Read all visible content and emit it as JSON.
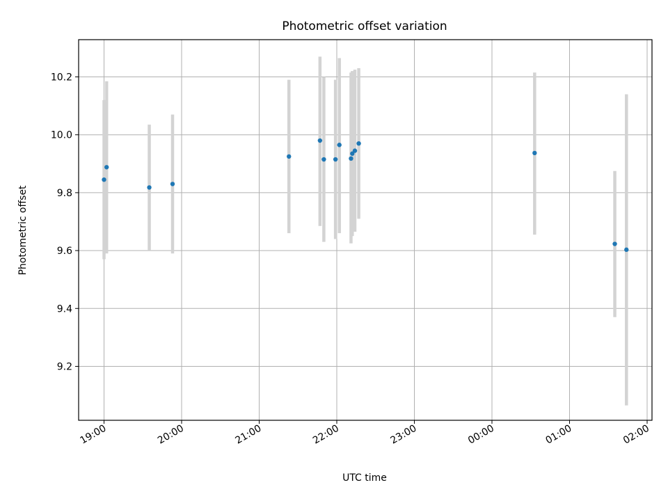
{
  "chart_data": {
    "type": "scatter",
    "title": "Photometric offset variation",
    "xlabel": "UTC time",
    "ylabel": "Photometric offset",
    "x_ticks": [
      "19:00",
      "20:00",
      "21:00",
      "22:00",
      "23:00",
      "00:00",
      "01:00",
      "02:00"
    ],
    "y_ticks": [
      "9.2",
      "9.4",
      "9.6",
      "9.8",
      "10.0",
      "10.2"
    ],
    "grid": true,
    "colors": {
      "point": "#1f77b4",
      "errorbar": "#d3d3d3"
    },
    "points": [
      {
        "time": "19:00",
        "y": 9.845,
        "ylow": 9.57,
        "yhigh": 10.12
      },
      {
        "time": "19:02",
        "y": 9.888,
        "ylow": 9.59,
        "yhigh": 10.185
      },
      {
        "time": "19:35",
        "y": 9.818,
        "ylow": 9.6,
        "yhigh": 10.035
      },
      {
        "time": "19:53",
        "y": 9.83,
        "ylow": 9.59,
        "yhigh": 10.07
      },
      {
        "time": "21:23",
        "y": 9.925,
        "ylow": 9.66,
        "yhigh": 10.19
      },
      {
        "time": "21:47",
        "y": 9.98,
        "ylow": 9.685,
        "yhigh": 10.27
      },
      {
        "time": "21:50",
        "y": 9.915,
        "ylow": 9.63,
        "yhigh": 10.2
      },
      {
        "time": "21:59",
        "y": 9.915,
        "ylow": 9.64,
        "yhigh": 10.19
      },
      {
        "time": "22:02",
        "y": 9.965,
        "ylow": 9.66,
        "yhigh": 10.265
      },
      {
        "time": "22:11",
        "y": 9.918,
        "ylow": 9.625,
        "yhigh": 10.215
      },
      {
        "time": "22:12",
        "y": 9.935,
        "ylow": 9.65,
        "yhigh": 10.22
      },
      {
        "time": "22:14",
        "y": 9.945,
        "ylow": 9.665,
        "yhigh": 10.225
      },
      {
        "time": "22:17",
        "y": 9.97,
        "ylow": 9.71,
        "yhigh": 10.23
      },
      {
        "time": "00:33",
        "y": 9.937,
        "ylow": 9.655,
        "yhigh": 10.215
      },
      {
        "time": "01:35",
        "y": 9.623,
        "ylow": 9.37,
        "yhigh": 9.875
      },
      {
        "time": "01:44",
        "y": 9.603,
        "ylow": 9.065,
        "yhigh": 10.14
      }
    ]
  }
}
